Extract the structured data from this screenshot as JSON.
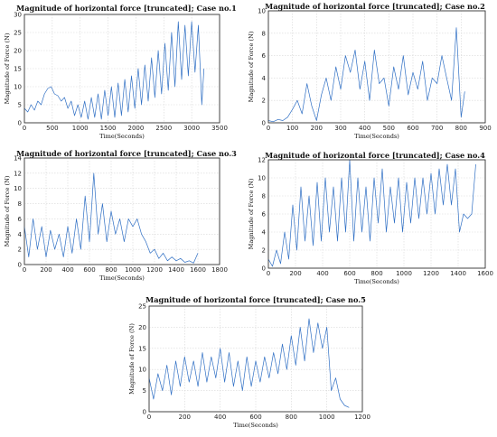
{
  "chart_data": [
    {
      "type": "line",
      "title": "Magnitude of horizontal force [truncated]; Case no.1",
      "xlabel": "Time(Seconds)",
      "ylabel": "Magnitude of Force (N)",
      "xlim": [
        0,
        3500
      ],
      "ylim": [
        0,
        30
      ],
      "xticks": [
        0,
        500,
        1000,
        1500,
        2000,
        2500,
        3000,
        3500
      ],
      "yticks": [
        0,
        5,
        10,
        15,
        20,
        25,
        30
      ],
      "grid": true,
      "color": "#2f6fc4",
      "x": [
        0,
        60,
        120,
        180,
        240,
        300,
        360,
        420,
        480,
        540,
        600,
        660,
        720,
        780,
        840,
        900,
        960,
        1020,
        1080,
        1140,
        1200,
        1260,
        1320,
        1380,
        1440,
        1500,
        1560,
        1620,
        1680,
        1740,
        1800,
        1860,
        1920,
        1980,
        2040,
        2100,
        2160,
        2220,
        2280,
        2340,
        2400,
        2460,
        2520,
        2580,
        2640,
        2700,
        2760,
        2820,
        2880,
        2940,
        3000,
        3060,
        3120,
        3180,
        3220
      ],
      "y": [
        4,
        3,
        5,
        3.5,
        6,
        5,
        8,
        9.5,
        10,
        8,
        7.5,
        6,
        7,
        4,
        6,
        2,
        5,
        1.5,
        6,
        1,
        7,
        1.5,
        8,
        1,
        9,
        2,
        10,
        1.5,
        11,
        2,
        12,
        3,
        13,
        4,
        15,
        5,
        16,
        6,
        18,
        7,
        20,
        8,
        22,
        9,
        25,
        10,
        28,
        12,
        27,
        13,
        28,
        14,
        27,
        5,
        15
      ]
    },
    {
      "type": "line",
      "title": "Magnitude of horizontal force [truncated]; Case no.2",
      "xlabel": "Time(Seconds)",
      "ylabel": "Magnitude of Force (N)",
      "xlim": [
        0,
        900
      ],
      "ylim": [
        0,
        10
      ],
      "xticks": [
        0,
        100,
        200,
        300,
        400,
        500,
        600,
        700,
        800,
        900
      ],
      "yticks": [
        0,
        2,
        4,
        6,
        8,
        10
      ],
      "grid": true,
      "color": "#2f6fc4",
      "x": [
        0,
        20,
        40,
        60,
        80,
        100,
        120,
        140,
        160,
        180,
        200,
        220,
        240,
        260,
        280,
        300,
        320,
        340,
        360,
        380,
        400,
        420,
        440,
        460,
        480,
        500,
        520,
        540,
        560,
        580,
        600,
        620,
        640,
        660,
        680,
        700,
        720,
        740,
        760,
        780,
        800,
        815
      ],
      "y": [
        0.2,
        0.1,
        0.3,
        0.2,
        0.5,
        1.2,
        2,
        0.8,
        3.5,
        1.5,
        0.2,
        2.5,
        4,
        2,
        5,
        3,
        6,
        4.5,
        6.5,
        3,
        5.5,
        2,
        6.5,
        3.5,
        4,
        1.5,
        5,
        3,
        6,
        2.5,
        4.5,
        3,
        5.5,
        2,
        4,
        3.5,
        6,
        4,
        2,
        8.5,
        0.5,
        2.8
      ]
    },
    {
      "type": "line",
      "title": "Magnitude of horizontal force [truncated]; Case no.3",
      "xlabel": "Time(Seconds)",
      "ylabel": "Magnitude of Force (N)",
      "xlim": [
        0,
        1800
      ],
      "ylim": [
        0,
        14
      ],
      "xticks": [
        0,
        200,
        400,
        600,
        800,
        1000,
        1200,
        1400,
        1600,
        1800
      ],
      "yticks": [
        0,
        2,
        4,
        6,
        8,
        10,
        12,
        14
      ],
      "grid": true,
      "color": "#2f6fc4",
      "x": [
        0,
        40,
        80,
        120,
        160,
        200,
        240,
        280,
        320,
        360,
        400,
        440,
        480,
        520,
        560,
        600,
        640,
        680,
        720,
        760,
        800,
        840,
        880,
        920,
        960,
        1000,
        1040,
        1080,
        1120,
        1160,
        1200,
        1240,
        1280,
        1320,
        1360,
        1400,
        1440,
        1480,
        1520,
        1560,
        1600
      ],
      "y": [
        5,
        1,
        6,
        2,
        5,
        1,
        4.5,
        2,
        4,
        1,
        5,
        1.5,
        6,
        2,
        9,
        3,
        12,
        4,
        8,
        3,
        7,
        4,
        6,
        3,
        6,
        5,
        6,
        4,
        3,
        1.5,
        2,
        0.8,
        1.5,
        0.5,
        1,
        0.5,
        0.8,
        0.3,
        0.5,
        0.2,
        1.5
      ]
    },
    {
      "type": "line",
      "title": "Magnitude of horizontal force [truncated]; Case no.4",
      "xlabel": "Time(Seconds)",
      "ylabel": "Magnitude of Force (N)",
      "xlim": [
        0,
        1600
      ],
      "ylim": [
        0,
        12
      ],
      "xticks": [
        0,
        200,
        400,
        600,
        800,
        1000,
        1200,
        1400,
        1600
      ],
      "yticks": [
        0,
        2,
        4,
        6,
        8,
        10,
        12
      ],
      "grid": true,
      "color": "#2f6fc4",
      "x": [
        0,
        30,
        60,
        90,
        120,
        150,
        180,
        210,
        240,
        270,
        300,
        330,
        360,
        390,
        420,
        450,
        480,
        510,
        540,
        570,
        600,
        630,
        660,
        690,
        720,
        750,
        780,
        810,
        840,
        870,
        900,
        930,
        960,
        990,
        1020,
        1050,
        1080,
        1110,
        1140,
        1170,
        1200,
        1230,
        1260,
        1290,
        1320,
        1350,
        1380,
        1410,
        1440,
        1470,
        1500,
        1530
      ],
      "y": [
        1,
        0.2,
        2,
        0.5,
        4,
        1,
        7,
        2,
        9,
        3,
        8,
        2.5,
        9.5,
        3,
        10,
        4,
        9,
        3,
        10,
        4,
        12,
        3,
        10,
        4,
        9,
        3,
        10,
        5,
        11,
        4,
        9,
        5,
        10,
        4,
        9.5,
        5,
        10,
        5.5,
        10,
        6,
        10.5,
        6,
        11,
        7,
        11.5,
        7,
        11,
        4,
        6,
        5.5,
        6,
        11.5
      ]
    },
    {
      "type": "line",
      "title": "Magnitude of horizontal force [truncated]; Case no.5",
      "xlabel": "Time(Seconds)",
      "ylabel": "Magnitude of Force (N)",
      "xlim": [
        0,
        1200
      ],
      "ylim": [
        0,
        25
      ],
      "xticks": [
        0,
        200,
        400,
        600,
        800,
        1000,
        1200
      ],
      "yticks": [
        0,
        5,
        10,
        15,
        20,
        25
      ],
      "grid": true,
      "color": "#2f6fc4",
      "x": [
        0,
        25,
        50,
        75,
        100,
        125,
        150,
        175,
        200,
        225,
        250,
        275,
        300,
        325,
        350,
        375,
        400,
        425,
        450,
        475,
        500,
        525,
        550,
        575,
        600,
        625,
        650,
        675,
        700,
        725,
        750,
        775,
        800,
        825,
        850,
        875,
        900,
        925,
        950,
        975,
        1000,
        1025,
        1050,
        1075,
        1100,
        1125
      ],
      "y": [
        8,
        3,
        9,
        5,
        11,
        4,
        12,
        6,
        13,
        7,
        12,
        6,
        14,
        7,
        13,
        8,
        15,
        7,
        14,
        6,
        12,
        5,
        13,
        6,
        12,
        7,
        13,
        8,
        14,
        9,
        16,
        10,
        18,
        11,
        20,
        12,
        22,
        14,
        21,
        15,
        20,
        5,
        8,
        3,
        1.5,
        1
      ]
    }
  ]
}
